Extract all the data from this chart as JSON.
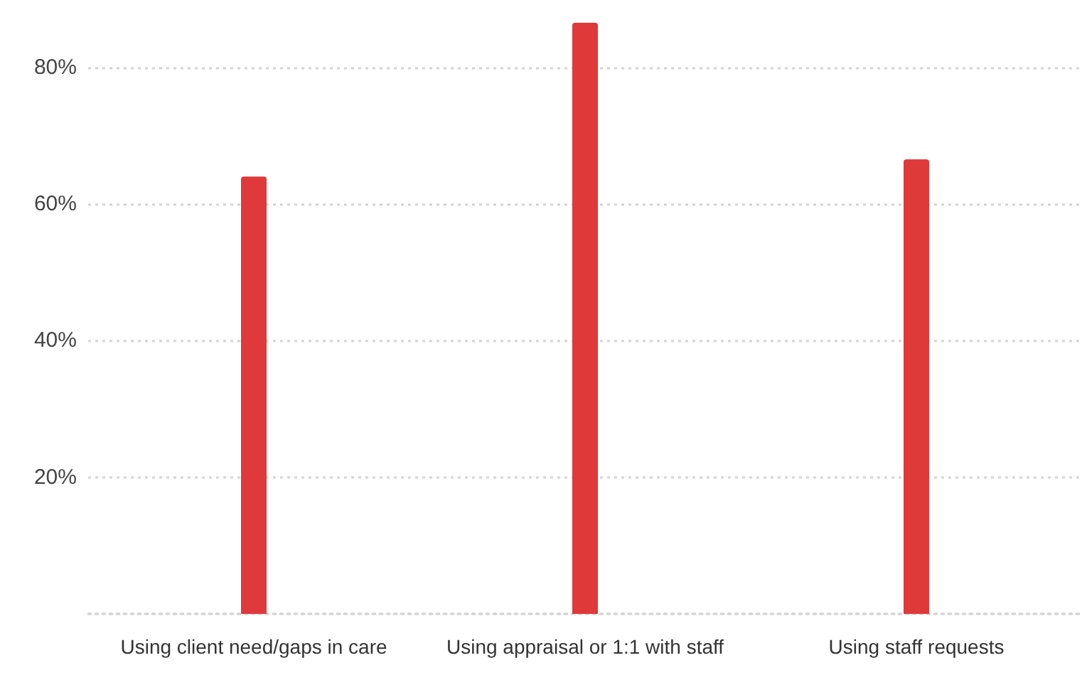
{
  "chart_data": {
    "type": "bar",
    "categories": [
      "Using client need/gaps in care",
      "Using appraisal or 1:1 with staff",
      "Using staff requests"
    ],
    "values": [
      64,
      86.5,
      66.5
    ],
    "color": "#e0393a",
    "ylim": [
      0,
      86.5
    ],
    "yticks": [
      {
        "value": 0,
        "label": null
      },
      {
        "value": 20,
        "label": "20%"
      },
      {
        "value": 40,
        "label": "40%"
      },
      {
        "value": 60,
        "label": "60%"
      },
      {
        "value": 80,
        "label": "80%"
      }
    ],
    "grid": "y"
  }
}
